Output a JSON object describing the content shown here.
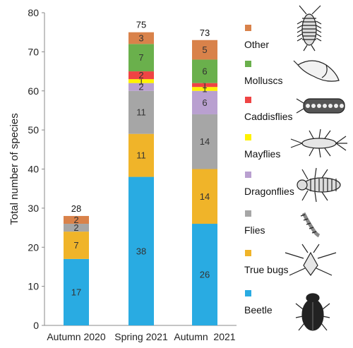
{
  "chart_data": {
    "type": "bar",
    "stacked": true,
    "categories": [
      "Autumn 2020",
      "Spring 2021",
      "Autumn  2021"
    ],
    "ylabel": "Total number of species",
    "xlabel": "",
    "ylim": [
      0,
      80
    ],
    "yticks": [
      0,
      10,
      20,
      30,
      40,
      50,
      60,
      70,
      80
    ],
    "grid": false,
    "legend_position": "right",
    "totals": [
      28,
      75,
      73
    ],
    "series": [
      {
        "name": "Beetle",
        "color": "#29ABE2",
        "icon": "beetle-icon",
        "values": [
          17,
          38,
          26
        ]
      },
      {
        "name": "True bugs",
        "color": "#F0B429",
        "icon": "true-bug-icon",
        "values": [
          7,
          11,
          14
        ]
      },
      {
        "name": "Flies",
        "color": "#A6A6A6",
        "icon": "fly-larva-icon",
        "values": [
          2,
          11,
          14
        ]
      },
      {
        "name": "Dragonflies",
        "color": "#B9A0D0",
        "icon": "dragonfly-larva-icon",
        "values": [
          0,
          2,
          6
        ]
      },
      {
        "name": "Mayflies",
        "color": "#FFF200",
        "icon": "mayfly-larva-icon",
        "values": [
          0,
          1,
          1
        ]
      },
      {
        "name": "Caddisflies",
        "color": "#EF4444",
        "icon": "caddisfly-case-icon",
        "values": [
          0,
          2,
          1
        ]
      },
      {
        "name": "Molluscs",
        "color": "#6AB04C",
        "icon": "snail-icon",
        "values": [
          0,
          7,
          6
        ]
      },
      {
        "name": "Other",
        "color": "#D9824A",
        "icon": "isopod-icon",
        "values": [
          2,
          3,
          5
        ]
      }
    ]
  }
}
